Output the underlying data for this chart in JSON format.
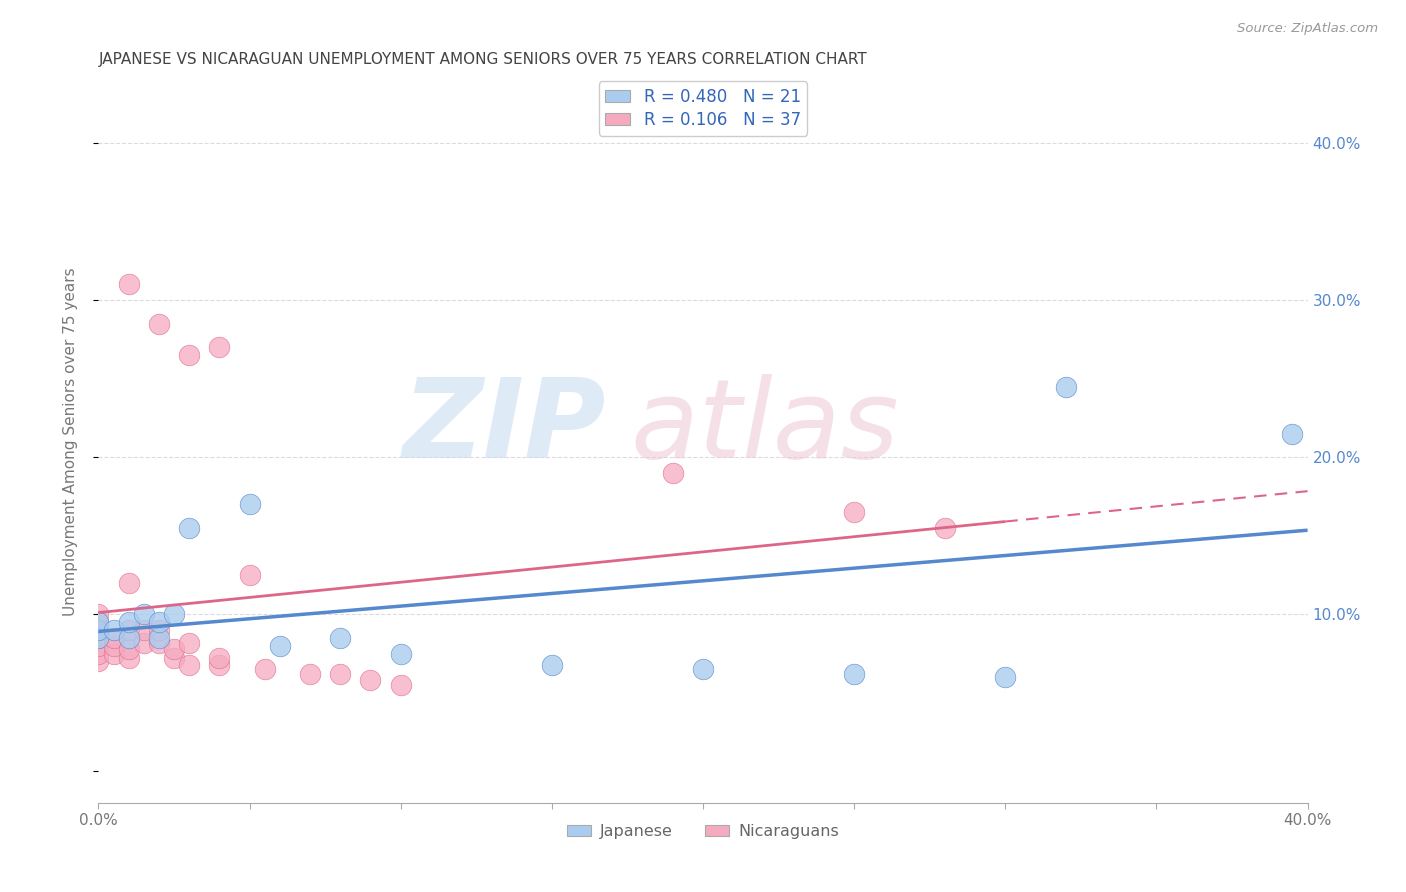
{
  "title": "JAPANESE VS NICARAGUAN UNEMPLOYMENT AMONG SENIORS OVER 75 YEARS CORRELATION CHART",
  "source": "Source: ZipAtlas.com",
  "ylabel": "Unemployment Among Seniors over 75 years",
  "xlim": [
    0.0,
    0.4
  ],
  "ylim": [
    -0.02,
    0.44
  ],
  "right_yticks": [
    0.1,
    0.2,
    0.3,
    0.4
  ],
  "right_ytick_labels": [
    "10.0%",
    "20.0%",
    "30.0%",
    "40.0%"
  ],
  "legend_R_japanese": "0.480",
  "legend_N_japanese": "21",
  "legend_R_nicaraguan": "0.106",
  "legend_N_nicaraguan": "37",
  "japanese_color": "#aaccee",
  "nicaraguan_color": "#f5aac0",
  "japanese_line_color": "#5588cc",
  "nicaraguan_line_color": "#dd6688",
  "japanese_points": [
    [
      0.0,
      0.085
    ],
    [
      0.0,
      0.09
    ],
    [
      0.0,
      0.095
    ],
    [
      0.005,
      0.09
    ],
    [
      0.01,
      0.085
    ],
    [
      0.01,
      0.095
    ],
    [
      0.015,
      0.1
    ],
    [
      0.02,
      0.085
    ],
    [
      0.02,
      0.095
    ],
    [
      0.025,
      0.1
    ],
    [
      0.03,
      0.155
    ],
    [
      0.05,
      0.17
    ],
    [
      0.06,
      0.08
    ],
    [
      0.08,
      0.085
    ],
    [
      0.1,
      0.075
    ],
    [
      0.15,
      0.068
    ],
    [
      0.2,
      0.065
    ],
    [
      0.25,
      0.062
    ],
    [
      0.3,
      0.06
    ],
    [
      0.32,
      0.245
    ],
    [
      0.395,
      0.215
    ]
  ],
  "nicaraguan_points": [
    [
      0.0,
      0.07
    ],
    [
      0.0,
      0.075
    ],
    [
      0.0,
      0.08
    ],
    [
      0.0,
      0.085
    ],
    [
      0.0,
      0.09
    ],
    [
      0.0,
      0.095
    ],
    [
      0.0,
      0.1
    ],
    [
      0.005,
      0.075
    ],
    [
      0.005,
      0.08
    ],
    [
      0.005,
      0.085
    ],
    [
      0.01,
      0.072
    ],
    [
      0.01,
      0.078
    ],
    [
      0.01,
      0.09
    ],
    [
      0.01,
      0.12
    ],
    [
      0.015,
      0.082
    ],
    [
      0.015,
      0.09
    ],
    [
      0.02,
      0.082
    ],
    [
      0.02,
      0.09
    ],
    [
      0.025,
      0.072
    ],
    [
      0.025,
      0.078
    ],
    [
      0.03,
      0.068
    ],
    [
      0.03,
      0.082
    ],
    [
      0.04,
      0.068
    ],
    [
      0.04,
      0.072
    ],
    [
      0.05,
      0.125
    ],
    [
      0.055,
      0.065
    ],
    [
      0.07,
      0.062
    ],
    [
      0.08,
      0.062
    ],
    [
      0.09,
      0.058
    ],
    [
      0.1,
      0.055
    ],
    [
      0.03,
      0.265
    ],
    [
      0.04,
      0.27
    ],
    [
      0.02,
      0.285
    ],
    [
      0.01,
      0.31
    ],
    [
      0.19,
      0.19
    ],
    [
      0.25,
      0.165
    ],
    [
      0.28,
      0.155
    ]
  ]
}
